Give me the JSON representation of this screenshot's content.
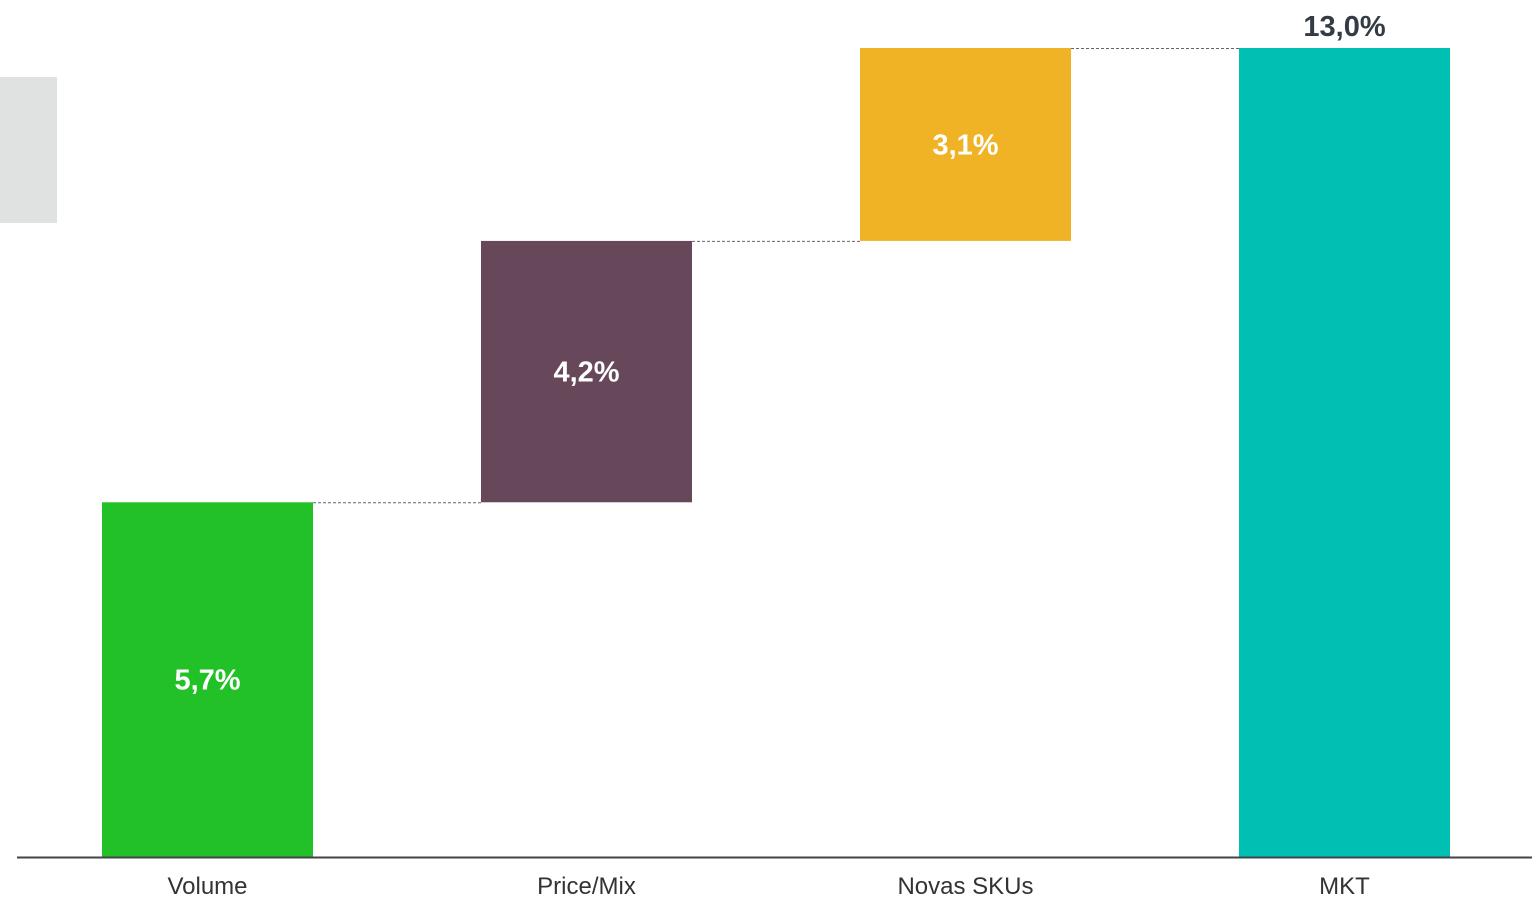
{
  "chart_data": {
    "type": "waterfall",
    "categories": [
      "Volume",
      "Price/Mix",
      "Novas SKUs",
      "MKT"
    ],
    "values": [
      5.7,
      4.2,
      3.1,
      13.0
    ],
    "bar_kinds": [
      "delta",
      "delta",
      "delta",
      "total"
    ],
    "value_labels": [
      "5,7%",
      "4,2%",
      "3,1%",
      "13,0%"
    ],
    "colors": [
      "#23c128",
      "#67475a",
      "#f0b326",
      "#00c0b4"
    ],
    "label_colors": [
      "#ffffff",
      "#ffffff",
      "#ffffff",
      "#333b44"
    ],
    "connectors": "dashed",
    "ylim": [
      0,
      13.0
    ],
    "grid": false,
    "title": "",
    "xlabel": "",
    "ylabel": ""
  }
}
